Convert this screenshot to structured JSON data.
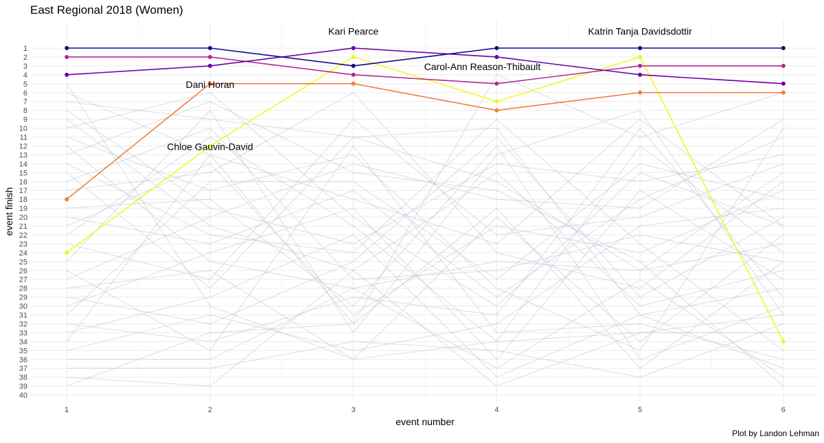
{
  "chart_data": {
    "type": "line",
    "title": "East Regional 2018 (Women)",
    "xlabel": "event number",
    "ylabel": "event finish",
    "caption": "Plot by Landon Lehman",
    "x": [
      1,
      2,
      3,
      4,
      5,
      6
    ],
    "xlim": [
      0.75,
      6.25
    ],
    "ylim": [
      0,
      40
    ],
    "y_reversed": true,
    "grid": true,
    "highlighted_series": [
      {
        "name": "Katrin Tanja Davidsdottir",
        "color": "#0d0887",
        "values": [
          1,
          1,
          3,
          1,
          1,
          1
        ]
      },
      {
        "name": "Kari Pearce",
        "color": "#6a00a8",
        "values": [
          4,
          3,
          1,
          2,
          4,
          5
        ]
      },
      {
        "name": "Carol-Ann Reason-Thibault",
        "color": "#b12a90",
        "values": [
          2,
          2,
          4,
          5,
          3,
          3
        ]
      },
      {
        "name": "Dani Horan",
        "color": "#e16462",
        "line_color": "#f07f3a",
        "values": [
          18,
          5,
          5,
          8,
          6,
          6
        ]
      },
      {
        "name": "Chloe Gauvin-David",
        "color": "#f0f921",
        "values": [
          24,
          12,
          2,
          7,
          2,
          34
        ]
      }
    ],
    "annotations": [
      {
        "text": "Kari Pearce",
        "x": 3,
        "y": -0.9
      },
      {
        "text": "Katrin Tanja Davidsdottir",
        "x": 5,
        "y": -0.9
      },
      {
        "text": "Carol-Ann Reason-Thibault",
        "x": 3.9,
        "y": 3.1
      },
      {
        "text": "Dani Horan",
        "x": 2,
        "y": 5.1
      },
      {
        "text": "Chloe Gauvin-David",
        "x": 2,
        "y": 12.1
      }
    ],
    "background_series_color": "#bcc6d3",
    "background_series": [
      [
        5,
        30,
        36,
        34,
        33,
        31
      ],
      [
        6,
        13,
        18,
        23,
        9,
        21
      ],
      [
        7,
        9,
        11,
        10,
        31,
        37
      ],
      [
        8,
        19,
        23,
        14,
        16,
        13
      ],
      [
        9,
        21,
        26,
        15,
        30,
        26
      ],
      [
        10,
        6,
        20,
        30,
        15,
        21
      ],
      [
        11,
        17,
        13,
        28,
        35,
        10
      ],
      [
        12,
        25,
        28,
        25,
        26,
        15
      ],
      [
        13,
        7,
        15,
        17,
        25,
        39
      ],
      [
        14,
        22,
        24,
        9,
        23,
        35
      ],
      [
        15,
        28,
        11,
        16,
        26,
        23
      ],
      [
        16,
        10,
        27,
        26,
        22,
        25
      ],
      [
        17,
        15,
        6,
        24,
        28,
        16
      ],
      [
        19,
        18,
        30,
        12,
        36,
        30
      ],
      [
        20,
        23,
        17,
        29,
        18,
        11
      ],
      [
        21,
        14,
        31,
        21,
        24,
        17
      ],
      [
        22,
        11,
        21,
        34,
        12,
        24
      ],
      [
        23,
        27,
        9,
        22,
        20,
        14
      ],
      [
        25,
        8,
        33,
        13,
        8,
        31
      ],
      [
        26,
        35,
        12,
        33,
        32,
        36
      ],
      [
        27,
        20,
        14,
        18,
        19,
        9
      ],
      [
        28,
        26,
        36,
        20,
        34,
        22
      ],
      [
        29,
        32,
        25,
        11,
        29,
        20
      ],
      [
        30,
        24,
        19,
        36,
        17,
        27
      ],
      [
        31,
        16,
        16,
        27,
        14,
        18
      ],
      [
        32,
        34,
        29,
        31,
        10,
        29
      ],
      [
        33,
        29,
        22,
        38,
        31,
        28
      ],
      [
        34,
        13,
        32,
        19,
        37,
        25
      ],
      [
        35,
        31,
        35,
        32,
        21,
        19
      ],
      [
        36,
        36,
        28,
        37,
        27,
        38
      ],
      [
        37,
        37,
        34,
        35,
        38,
        32
      ],
      [
        38,
        39,
        26,
        39,
        33,
        33
      ],
      [
        39,
        33,
        32,
        4,
        11,
        6
      ]
    ]
  }
}
